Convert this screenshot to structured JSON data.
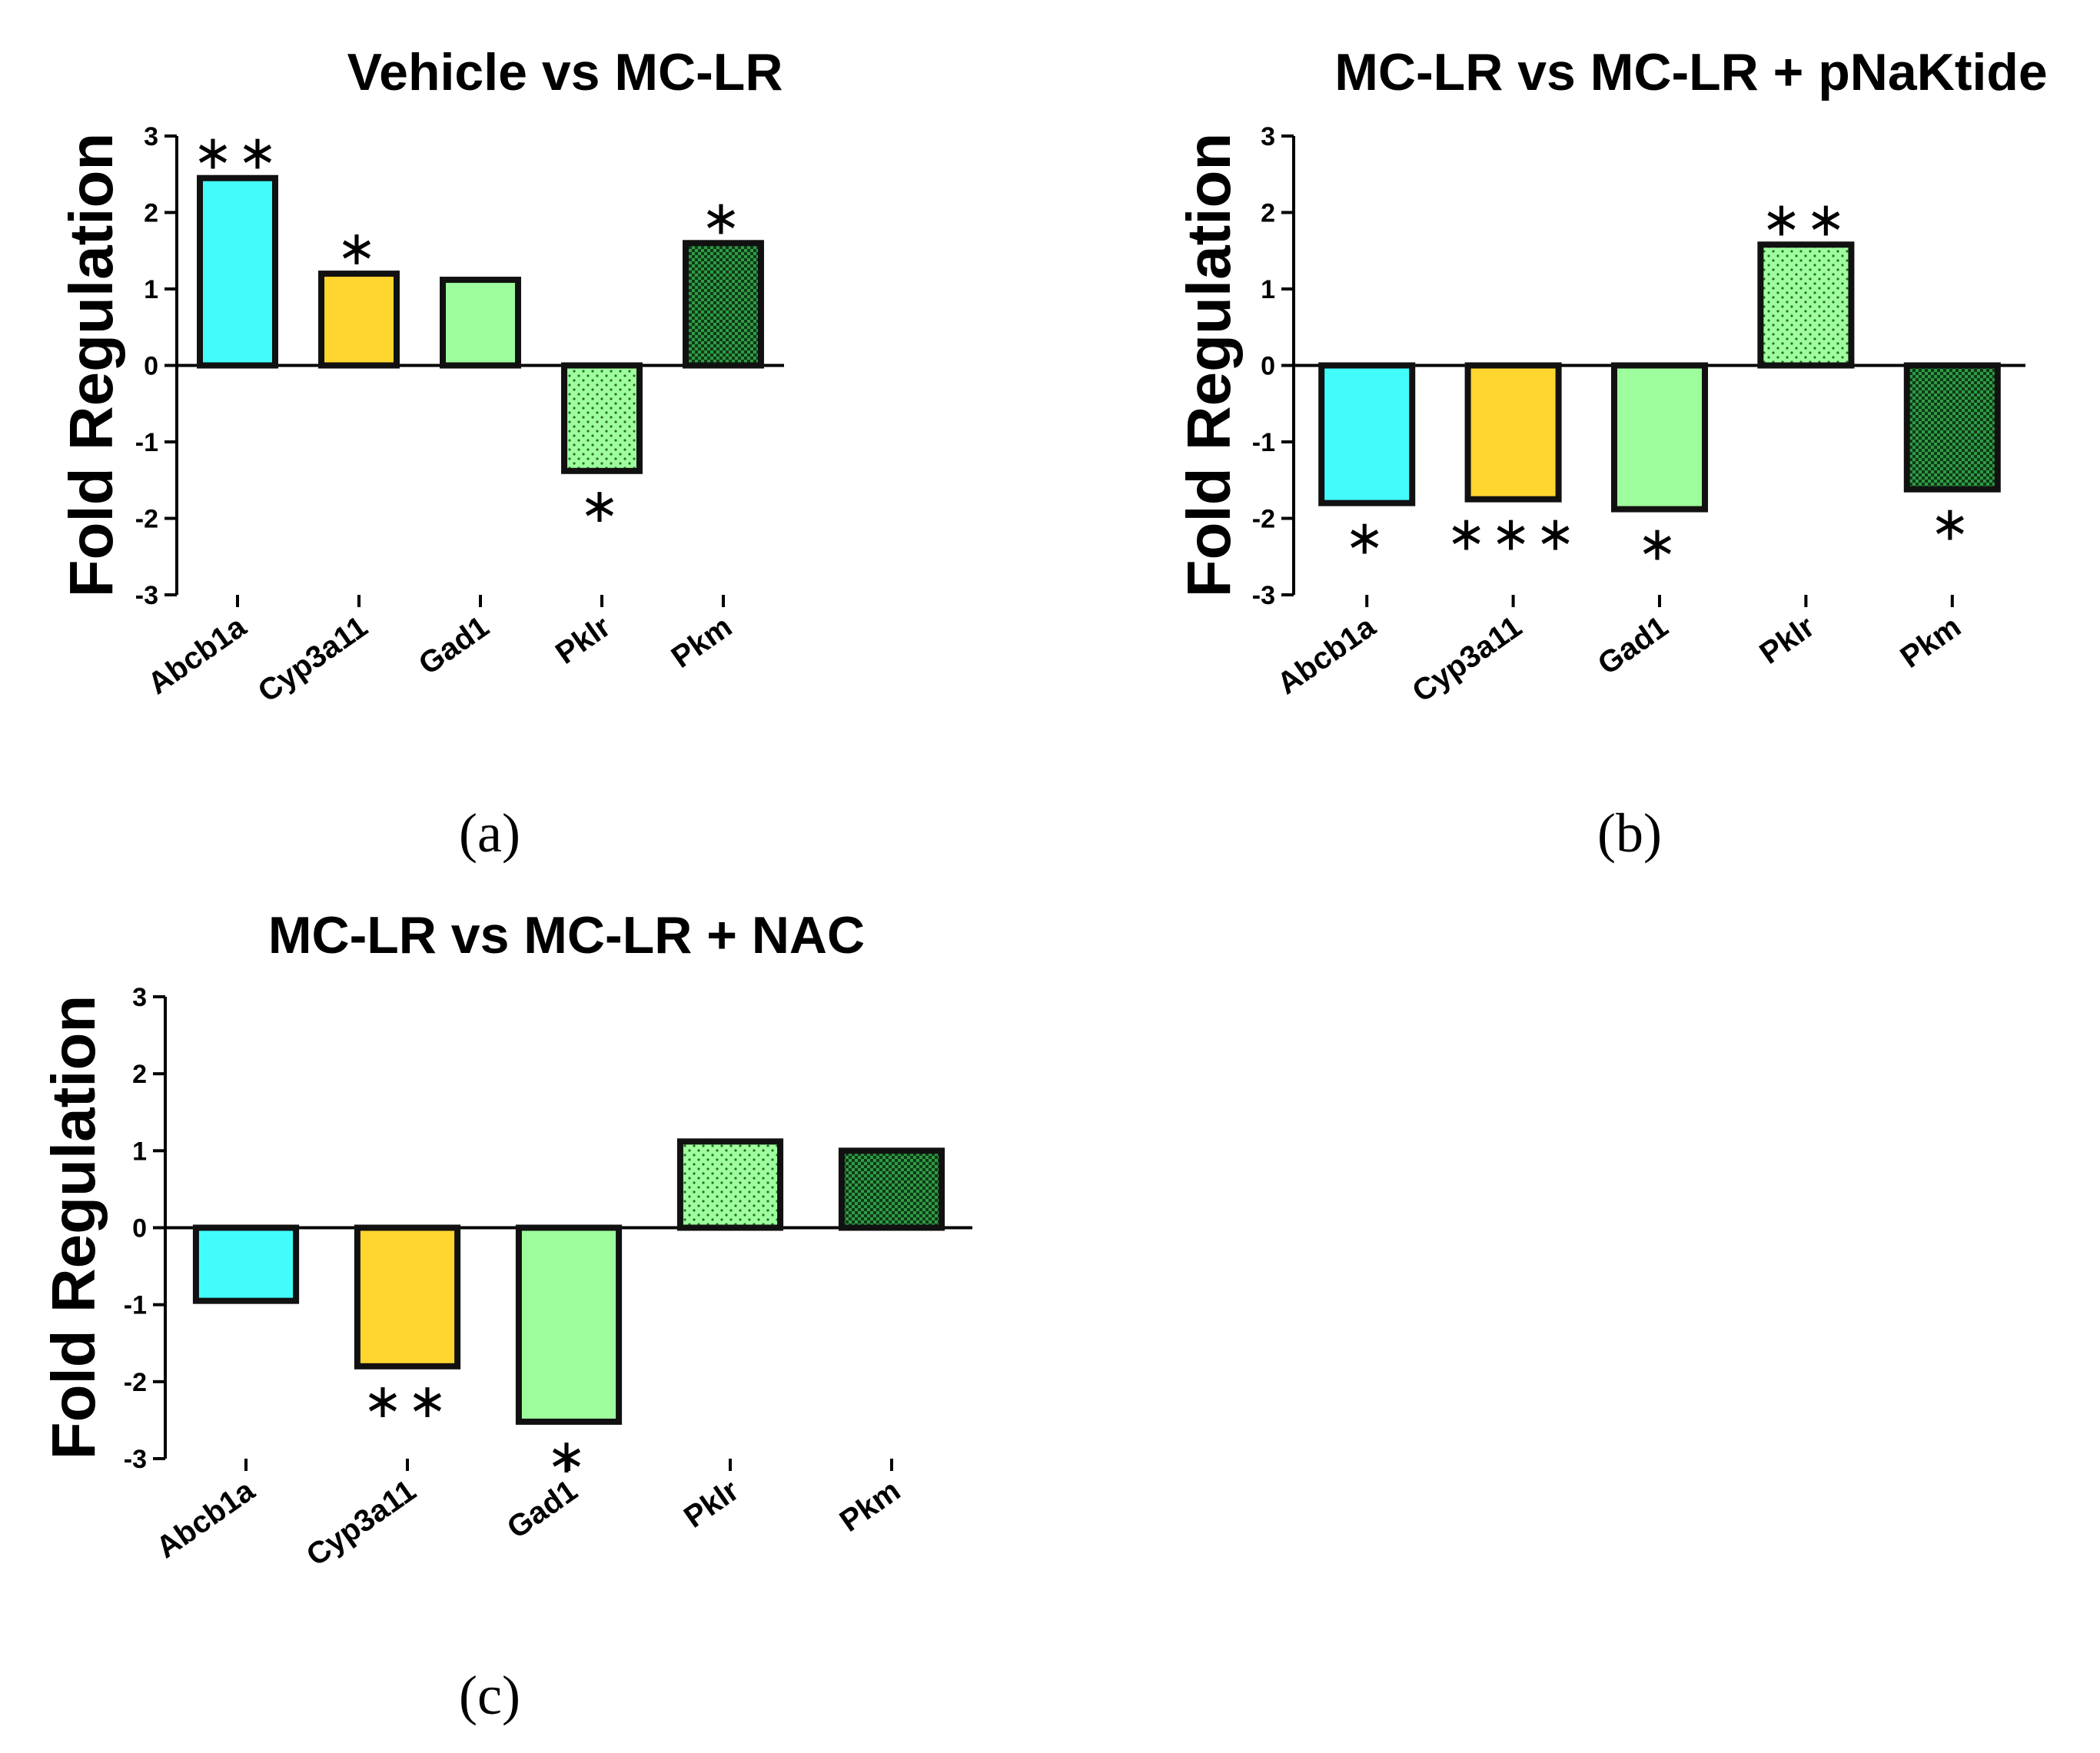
{
  "chart_data": [
    {
      "type": "bar",
      "title": "Vehicle vs MC-LR",
      "panel_label": "(a)",
      "ylabel": "Fold Regulation",
      "ylim": [
        -3,
        3
      ],
      "yticks": [
        3,
        2,
        1,
        0,
        -1,
        -2,
        -3
      ],
      "categories": [
        "Abcb1a",
        "Cyp3a11",
        "Gad1",
        "Pklr",
        "Pkm"
      ],
      "values": [
        2.45,
        1.2,
        1.12,
        -1.38,
        1.6
      ],
      "significance": [
        "∗∗",
        "∗",
        "",
        "∗",
        "∗"
      ]
    },
    {
      "type": "bar",
      "title": "MC-LR vs MC-LR + pNaKtide",
      "panel_label": "(b)",
      "ylabel": "Fold Regulation",
      "ylim": [
        -3,
        3
      ],
      "yticks": [
        3,
        2,
        1,
        0,
        -1,
        -2,
        -3
      ],
      "categories": [
        "Abcb1a",
        "Cyp3a11",
        "Gad1",
        "Pklr",
        "Pkm"
      ],
      "values": [
        -1.8,
        -1.75,
        -1.88,
        1.58,
        -1.62
      ],
      "significance": [
        "∗",
        "∗∗∗",
        "∗",
        "∗∗",
        "∗"
      ]
    },
    {
      "type": "bar",
      "title": "MC-LR vs MC-LR + NAC",
      "panel_label": "(c)",
      "ylabel": "Fold Regulation",
      "ylim": [
        -3,
        3
      ],
      "yticks": [
        3,
        2,
        1,
        0,
        -1,
        -2,
        -3
      ],
      "categories": [
        "Abcb1a",
        "Cyp3a11",
        "Gad1",
        "Pklr",
        "Pkm"
      ],
      "values": [
        -0.95,
        -1.8,
        -2.52,
        1.12,
        1.0
      ],
      "significance": [
        "",
        "∗∗",
        "∗",
        "",
        ""
      ]
    }
  ],
  "colors": {
    "Abcb1a": "#42fcfc",
    "Cyp3a11": "#fed62f",
    "Gad1": "#9efe9d",
    "Pklr_base": "#9efe9d",
    "Pkm_base": "#2f9b47",
    "axis": "#000000"
  }
}
